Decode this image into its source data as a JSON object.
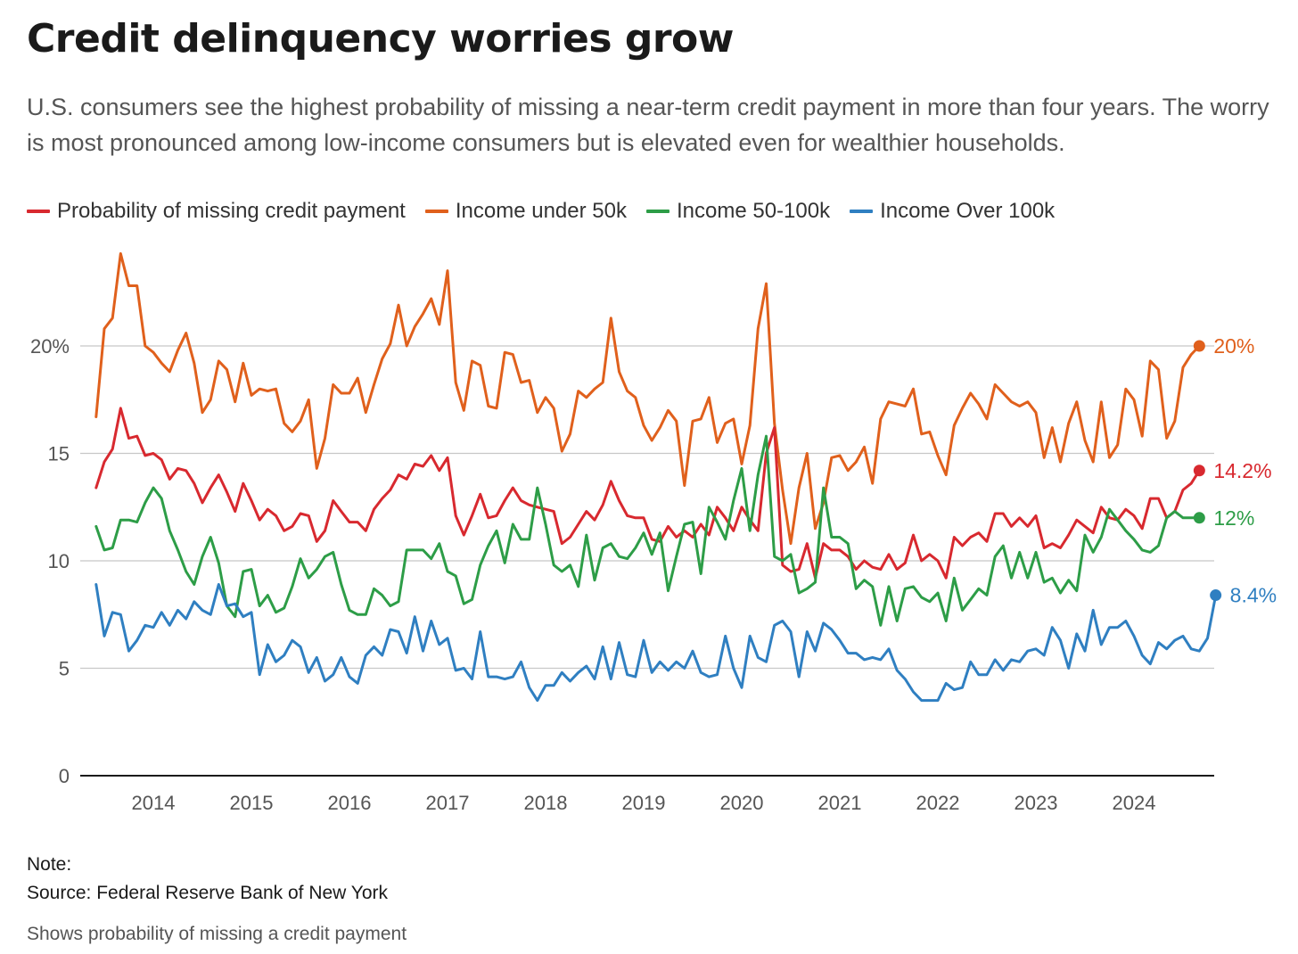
{
  "header": {
    "title": "Credit delinquency worries grow",
    "subtitle": "U.S. consumers see the highest probability of missing a near-term credit payment in more than four years. The worry is most pronounced among low-income consumers but is elevated even for wealthier households."
  },
  "footer": {
    "note": "Note:",
    "source": "Source: Federal Reserve Bank of New York",
    "footnote": "Shows probability of missing a credit payment"
  },
  "chart_data": {
    "type": "line",
    "title": "",
    "xlabel": "",
    "ylabel": "",
    "grid": true,
    "legend_position": "top-left",
    "x_start": "2013-06",
    "x_step": "monthly",
    "x_ticks": [
      {
        "label": "2014",
        "value": 2014.0
      },
      {
        "label": "2015",
        "value": 2015.0
      },
      {
        "label": "2016",
        "value": 2016.0
      },
      {
        "label": "2017",
        "value": 2017.0
      },
      {
        "label": "2018",
        "value": 2018.0
      },
      {
        "label": "2019",
        "value": 2019.0
      },
      {
        "label": "2020",
        "value": 2020.0
      },
      {
        "label": "2021",
        "value": 2021.0
      },
      {
        "label": "2022",
        "value": 2022.0
      },
      {
        "label": "2023",
        "value": 2023.0
      },
      {
        "label": "2024",
        "value": 2024.0
      }
    ],
    "y_ticks": [
      {
        "label": "0",
        "value": 0
      },
      {
        "label": "5",
        "value": 5
      },
      {
        "label": "10",
        "value": 10
      },
      {
        "label": "15",
        "value": 15
      },
      {
        "label": "20%",
        "value": 20
      }
    ],
    "ylim": [
      0,
      24.5
    ],
    "xlim": [
      2013.3,
      2024.9
    ],
    "series": [
      {
        "name": "Income under 50k",
        "color": "#e0601c",
        "end_label": "20%",
        "values": [
          16.7,
          20.8,
          21.3,
          24.3,
          22.8,
          22.8,
          20.0,
          19.7,
          19.2,
          18.8,
          19.8,
          20.6,
          19.2,
          16.9,
          17.5,
          19.3,
          18.9,
          17.4,
          19.2,
          17.7,
          18.0,
          17.9,
          18.0,
          16.4,
          16.0,
          16.5,
          17.5,
          14.3,
          15.7,
          18.2,
          17.8,
          17.8,
          18.5,
          16.9,
          18.2,
          19.4,
          20.1,
          21.9,
          20.0,
          20.9,
          21.5,
          22.2,
          21.0,
          23.5,
          18.3,
          17.0,
          19.3,
          19.1,
          17.2,
          17.1,
          19.7,
          19.6,
          18.3,
          18.4,
          16.9,
          17.6,
          17.1,
          15.1,
          15.9,
          17.9,
          17.6,
          18.0,
          18.3,
          21.3,
          18.8,
          17.9,
          17.6,
          16.3,
          15.6,
          16.2,
          17.0,
          16.5,
          13.5,
          16.5,
          16.6,
          17.6,
          15.5,
          16.4,
          16.6,
          14.5,
          16.3,
          20.8,
          22.9,
          16.4,
          13.3,
          10.8,
          13.4,
          15.0,
          11.5,
          12.7,
          14.8,
          14.9,
          14.2,
          14.6,
          15.3,
          13.6,
          16.6,
          17.4,
          17.3,
          17.2,
          18.0,
          15.9,
          16.0,
          14.9,
          14.0,
          16.3,
          17.1,
          17.8,
          17.3,
          16.6,
          18.2,
          17.8,
          17.4,
          17.2,
          17.4,
          16.9,
          14.8,
          16.2,
          14.6,
          16.4,
          17.4,
          15.6,
          14.6,
          17.4,
          14.8,
          15.4,
          18.0,
          17.5,
          15.8,
          19.3,
          18.9,
          15.7,
          16.5,
          19.0,
          19.6,
          20.0
        ]
      },
      {
        "name": "Probability of missing credit payment",
        "color": "#d8292f",
        "end_label": "14.2%",
        "values": [
          13.4,
          14.6,
          15.2,
          17.1,
          15.7,
          15.8,
          14.9,
          15.0,
          14.7,
          13.8,
          14.3,
          14.2,
          13.6,
          12.7,
          13.4,
          14.0,
          13.2,
          12.3,
          13.6,
          12.8,
          11.9,
          12.4,
          12.1,
          11.4,
          11.6,
          12.2,
          12.1,
          10.9,
          11.4,
          12.8,
          12.3,
          11.8,
          11.8,
          11.4,
          12.4,
          12.9,
          13.3,
          14.0,
          13.8,
          14.5,
          14.4,
          14.9,
          14.2,
          14.8,
          12.1,
          11.2,
          12.1,
          13.1,
          12.0,
          12.1,
          12.8,
          13.4,
          12.8,
          12.6,
          12.5,
          12.4,
          12.3,
          10.8,
          11.1,
          11.7,
          12.3,
          11.9,
          12.6,
          13.7,
          12.8,
          12.1,
          12.0,
          12.0,
          11.0,
          10.9,
          11.6,
          11.1,
          11.4,
          11.1,
          11.7,
          11.2,
          12.5,
          12.0,
          11.4,
          12.5,
          11.9,
          11.4,
          15.0,
          16.2,
          9.8,
          9.5,
          9.6,
          10.8,
          9.2,
          10.8,
          10.5,
          10.5,
          10.2,
          9.6,
          10.0,
          9.7,
          9.6,
          10.3,
          9.6,
          9.9,
          11.2,
          10.0,
          10.3,
          10.0,
          9.2,
          11.1,
          10.7,
          11.1,
          11.3,
          10.9,
          12.2,
          12.2,
          11.6,
          12.0,
          11.6,
          12.1,
          10.6,
          10.8,
          10.6,
          11.2,
          11.9,
          11.6,
          11.3,
          12.5,
          12.0,
          11.9,
          12.4,
          12.1,
          11.5,
          12.9,
          12.9,
          12.0,
          12.3,
          13.3,
          13.6,
          14.2
        ]
      },
      {
        "name": "Income 50-100k",
        "color": "#2d9d47",
        "end_label": "12%",
        "values": [
          11.6,
          10.5,
          10.6,
          11.9,
          11.9,
          11.8,
          12.7,
          13.4,
          12.9,
          11.4,
          10.5,
          9.5,
          8.9,
          10.2,
          11.1,
          9.9,
          7.9,
          7.4,
          9.5,
          9.6,
          7.9,
          8.4,
          7.6,
          7.8,
          8.8,
          10.1,
          9.2,
          9.6,
          10.2,
          10.4,
          8.9,
          7.7,
          7.5,
          7.5,
          8.7,
          8.4,
          7.9,
          8.1,
          10.5,
          10.5,
          10.5,
          10.1,
          10.8,
          9.5,
          9.3,
          8.0,
          8.2,
          9.8,
          10.7,
          11.4,
          9.9,
          11.7,
          11.0,
          11.0,
          13.4,
          11.7,
          9.8,
          9.5,
          9.8,
          8.8,
          11.2,
          9.1,
          10.6,
          10.8,
          10.2,
          10.1,
          10.6,
          11.3,
          10.3,
          11.3,
          8.6,
          10.2,
          11.7,
          11.8,
          9.4,
          12.5,
          11.8,
          11.0,
          12.8,
          14.3,
          11.4,
          14.0,
          15.8,
          10.2,
          10.0,
          10.3,
          8.5,
          8.7,
          9.0,
          13.4,
          11.1,
          11.1,
          10.8,
          8.7,
          9.1,
          8.8,
          7.0,
          8.8,
          7.2,
          8.7,
          8.8,
          8.3,
          8.1,
          8.5,
          7.2,
          9.2,
          7.7,
          8.2,
          8.7,
          8.4,
          10.2,
          10.7,
          9.2,
          10.4,
          9.2,
          10.4,
          9.0,
          9.2,
          8.5,
          9.1,
          8.6,
          11.2,
          10.4,
          11.1,
          12.4,
          11.9,
          11.4,
          11.0,
          10.5,
          10.4,
          10.7,
          12.0,
          12.3,
          12.0,
          12.0,
          12.0
        ]
      },
      {
        "name": "Income Over 100k",
        "color": "#2f7fc1",
        "end_label": "8.4%",
        "values": [
          8.9,
          6.5,
          7.6,
          7.5,
          5.8,
          6.3,
          7.0,
          6.9,
          7.6,
          7.0,
          7.7,
          7.3,
          8.1,
          7.7,
          7.5,
          8.9,
          7.9,
          8.0,
          7.4,
          7.6,
          4.7,
          6.1,
          5.3,
          5.6,
          6.3,
          6.0,
          4.8,
          5.5,
          4.4,
          4.7,
          5.5,
          4.6,
          4.3,
          5.6,
          6.0,
          5.6,
          6.8,
          6.7,
          5.7,
          7.4,
          5.8,
          7.2,
          6.1,
          6.4,
          4.9,
          5.0,
          4.5,
          6.7,
          4.6,
          4.6,
          4.5,
          4.6,
          5.3,
          4.1,
          3.5,
          4.2,
          4.2,
          4.8,
          4.4,
          4.8,
          5.1,
          4.5,
          6.0,
          4.5,
          6.2,
          4.7,
          4.6,
          6.3,
          4.8,
          5.3,
          4.9,
          5.3,
          5.0,
          5.8,
          4.8,
          4.6,
          4.7,
          6.5,
          5.0,
          4.1,
          6.5,
          5.5,
          5.3,
          7.0,
          7.2,
          6.7,
          4.6,
          6.7,
          5.8,
          7.1,
          6.8,
          6.3,
          5.7,
          5.7,
          5.4,
          5.5,
          5.4,
          5.9,
          4.9,
          4.5,
          3.9,
          3.5,
          3.5,
          3.5,
          4.3,
          4.0,
          4.1,
          5.3,
          4.7,
          4.7,
          5.4,
          4.9,
          5.4,
          5.3,
          5.8,
          5.9,
          5.6,
          6.9,
          6.3,
          5.0,
          6.6,
          5.8,
          7.7,
          6.1,
          6.9,
          6.9,
          7.2,
          6.5,
          5.6,
          5.2,
          6.2,
          5.9,
          6.3,
          6.5,
          5.9,
          5.8,
          6.4,
          8.4
        ]
      }
    ]
  }
}
